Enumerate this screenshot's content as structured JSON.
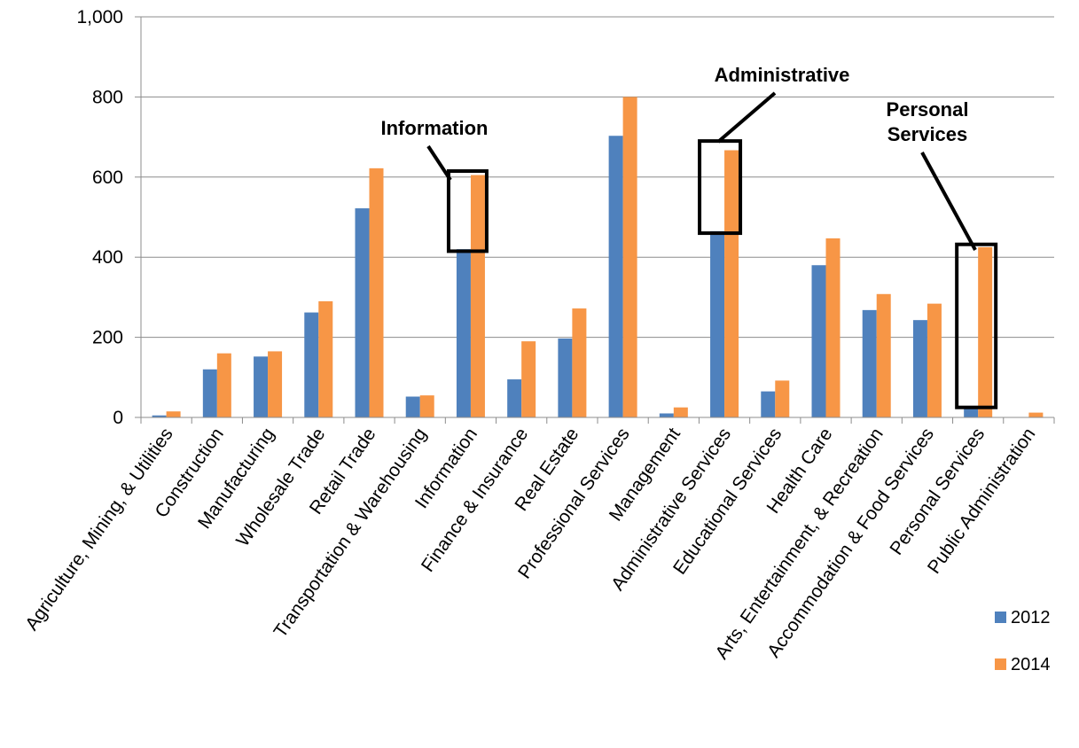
{
  "chart_data": {
    "type": "bar",
    "title": "",
    "xlabel": "",
    "ylabel": "",
    "ylim": [
      0,
      1000
    ],
    "yticks": [
      "0",
      "200",
      "400",
      "600",
      "800",
      "1,000"
    ],
    "grid": true,
    "legend_position": "bottom-right",
    "categories": [
      "Agriculture, Mining, & Utilities",
      "Construction",
      "Manufacturing",
      "Wholesale Trade",
      "Retail Trade",
      "Transportation & Warehousing",
      "Information",
      "Finance & Insurance",
      "Real Estate",
      "Professional Services",
      "Management",
      "Administrative Services",
      "Educational Services",
      "Health Care",
      "Arts, Entertainment, & Recreation",
      "Accommodation & Food Services",
      "Personal Services",
      "Public Administration"
    ],
    "series": [
      {
        "name": "2012",
        "color": "#4F81BD",
        "values": [
          5,
          120,
          152,
          262,
          522,
          52,
          420,
          95,
          197,
          703,
          10,
          465,
          65,
          380,
          268,
          243,
          25,
          0
        ]
      },
      {
        "name": "2014",
        "color": "#F79646",
        "values": [
          15,
          160,
          165,
          290,
          622,
          55,
          605,
          190,
          272,
          800,
          25,
          667,
          92,
          447,
          308,
          284,
          425,
          12
        ]
      }
    ],
    "annotations": [
      {
        "text": [
          "Information"
        ],
        "category": "Information",
        "box_range": [
          415,
          615
        ]
      },
      {
        "text": [
          "Administrative"
        ],
        "category": "Administrative Services",
        "box_range": [
          460,
          690
        ]
      },
      {
        "text": [
          "Personal",
          "Services"
        ],
        "category": "Personal Services",
        "box_range": [
          25,
          432
        ]
      }
    ]
  }
}
